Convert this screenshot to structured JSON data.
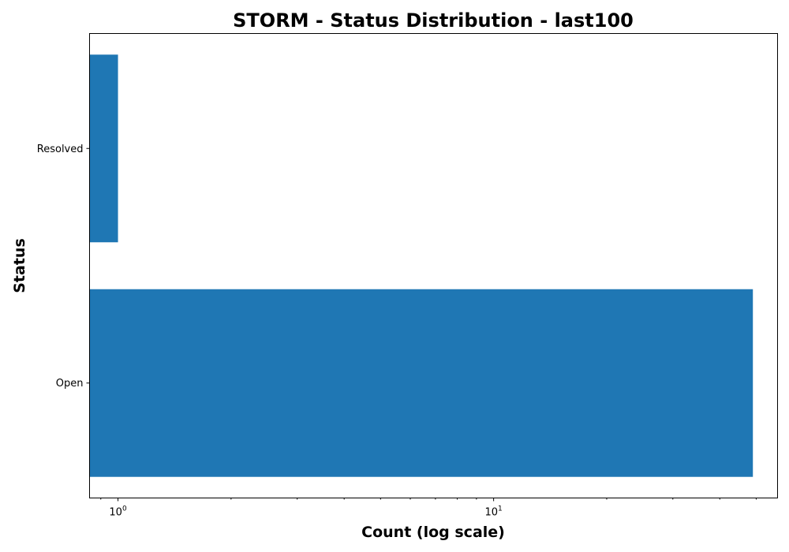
{
  "chart_data": {
    "type": "bar",
    "orientation": "horizontal",
    "title": "STORM - Status Distribution - last100",
    "xlabel": "Count (log scale)",
    "ylabel": "Status",
    "x_scale": "log",
    "xlim": [
      0.84,
      57
    ],
    "x_ticks": [
      {
        "base": "10",
        "exp": "0",
        "value": 1
      },
      {
        "base": "10",
        "exp": "1",
        "value": 10
      }
    ],
    "categories": [
      "Open",
      "Resolved"
    ],
    "values": [
      49,
      1
    ],
    "bar_color": "#1f77b4",
    "grid": false,
    "legend": "none"
  }
}
